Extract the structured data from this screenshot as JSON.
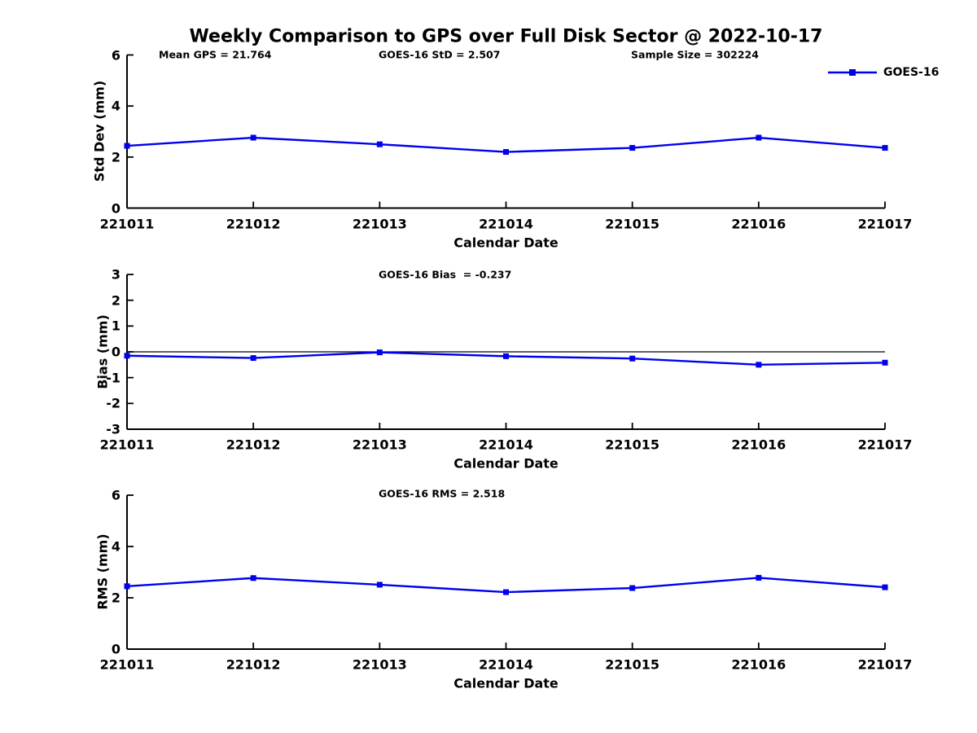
{
  "title": "Weekly Comparison to GPS over Full Disk Sector @ 2022-10-17",
  "legend": {
    "label": "GOES-16"
  },
  "colors": {
    "line": "#0000ee",
    "axis": "#000000",
    "text": "#000000"
  },
  "chart_data": [
    {
      "type": "line",
      "subplot": "std-dev",
      "annotations": [
        "Mean GPS = 21.764",
        "GOES-16 StD = 2.507",
        "Sample Size = 302224"
      ],
      "categories": [
        "221011",
        "221012",
        "221013",
        "221014",
        "221015",
        "221016",
        "221017"
      ],
      "series": [
        {
          "name": "GOES-16",
          "values": [
            2.44,
            2.76,
            2.5,
            2.2,
            2.36,
            2.76,
            2.36
          ]
        }
      ],
      "xlabel": "Calendar Date",
      "ylabel": "Std Dev (mm)",
      "ylim": [
        0,
        6
      ],
      "yticks": [
        0,
        2,
        4,
        6
      ],
      "grid": false,
      "legend_position": "upper-right",
      "marker": "square"
    },
    {
      "type": "line",
      "subplot": "bias",
      "annotations": [
        "GOES-16 Bias  = -0.237"
      ],
      "categories": [
        "221011",
        "221012",
        "221013",
        "221014",
        "221015",
        "221016",
        "221017"
      ],
      "series": [
        {
          "name": "GOES-16",
          "values": [
            -0.15,
            -0.24,
            -0.02,
            -0.17,
            -0.26,
            -0.5,
            -0.42
          ]
        }
      ],
      "xlabel": "Calendar Date",
      "ylabel": "Bias (mm)",
      "ylim": [
        -3,
        3
      ],
      "yticks": [
        -3,
        -2,
        -1,
        0,
        1,
        2,
        3
      ],
      "zero_line": true,
      "grid": false,
      "marker": "square"
    },
    {
      "type": "line",
      "subplot": "rms",
      "annotations": [
        "GOES-16 RMS = 2.518"
      ],
      "categories": [
        "221011",
        "221012",
        "221013",
        "221014",
        "221015",
        "221016",
        "221017"
      ],
      "series": [
        {
          "name": "GOES-16",
          "values": [
            2.45,
            2.77,
            2.51,
            2.22,
            2.38,
            2.78,
            2.41
          ]
        }
      ],
      "xlabel": "Calendar Date",
      "ylabel": "RMS (mm)",
      "ylim": [
        0,
        6
      ],
      "yticks": [
        0,
        2,
        4,
        6
      ],
      "grid": false,
      "marker": "square"
    }
  ]
}
